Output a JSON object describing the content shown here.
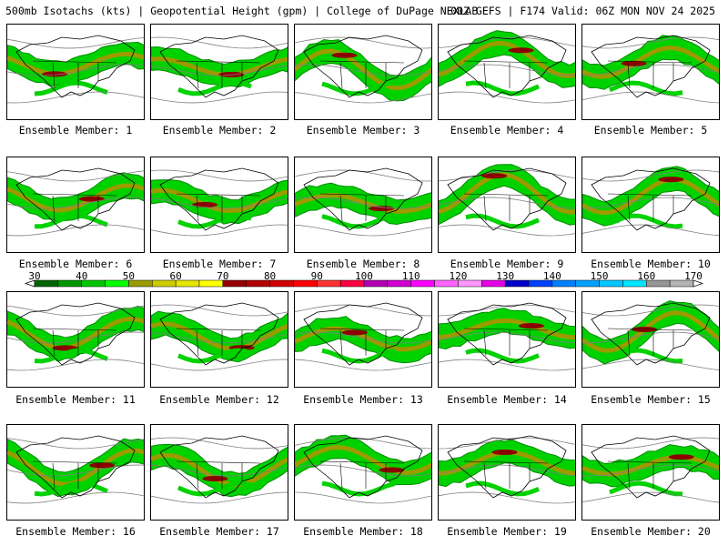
{
  "header": {
    "left": "500mb Isotachs (kts) | Geopotential Height (gpm) | College of DuPage NEXLAB",
    "right": "00Z GEFS | F174 Valid: 06Z MON NOV 24 2025"
  },
  "panels": [
    {
      "label": "Ensemble Member: 1"
    },
    {
      "label": "Ensemble Member: 2"
    },
    {
      "label": "Ensemble Member: 3"
    },
    {
      "label": "Ensemble Member: 4"
    },
    {
      "label": "Ensemble Member: 5"
    },
    {
      "label": "Ensemble Member: 6"
    },
    {
      "label": "Ensemble Member: 7"
    },
    {
      "label": "Ensemble Member: 8"
    },
    {
      "label": "Ensemble Member: 9"
    },
    {
      "label": "Ensemble Member: 10"
    },
    {
      "label": "Ensemble Member: 11"
    },
    {
      "label": "Ensemble Member: 12"
    },
    {
      "label": "Ensemble Member: 13"
    },
    {
      "label": "Ensemble Member: 14"
    },
    {
      "label": "Ensemble Member: 15"
    },
    {
      "label": "Ensemble Member: 16"
    },
    {
      "label": "Ensemble Member: 17"
    },
    {
      "label": "Ensemble Member: 18"
    },
    {
      "label": "Ensemble Member: 19"
    },
    {
      "label": "Ensemble Member: 20"
    }
  ],
  "colorbar": {
    "labels": [
      "30",
      "40",
      "50",
      "60",
      "70",
      "80",
      "90",
      "100",
      "110",
      "120",
      "130",
      "140",
      "150",
      "160",
      "170"
    ],
    "colors": [
      "#006400",
      "#009600",
      "#00c800",
      "#00ff00",
      "#9b9b00",
      "#cdcd00",
      "#e6e600",
      "#ffff00",
      "#960000",
      "#b40000",
      "#d20000",
      "#ff0000",
      "#ff3232",
      "#ff0040",
      "#b400b4",
      "#d200d2",
      "#ff00ff",
      "#ff64ff",
      "#ff96ff",
      "#e600e6",
      "#0000c8",
      "#0040ff",
      "#0080ff",
      "#00a0ff",
      "#00c8ff",
      "#00e6ff",
      "#969696",
      "#b4b4b4"
    ]
  },
  "map_colors": {
    "jet_dark": "#008c00",
    "jet_mid": "#00d200",
    "jet_core": "#9b9b00",
    "jet_max": "#8b0000",
    "border": "#000000",
    "height": "#808080"
  }
}
